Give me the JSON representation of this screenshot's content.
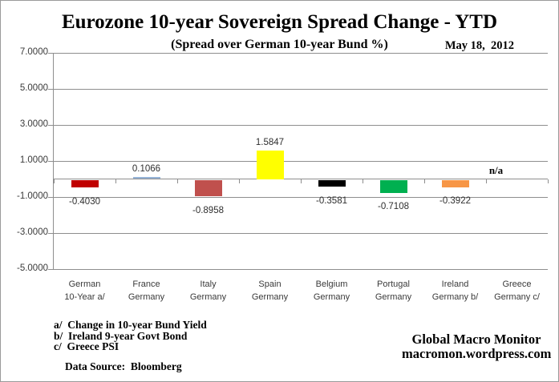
{
  "header": {
    "title": "Eurozone 10-year Sovereign Spread Change - YTD",
    "subtitle": "(Spread over German 10-year Bund %)",
    "date": "May 18,  2012"
  },
  "chart_data": {
    "type": "bar",
    "title": "Eurozone 10-year Sovereign Spread Change - YTD",
    "subtitle": "(Spread over German 10-year Bund %)",
    "categories": [
      {
        "line1": "German",
        "line2": "10-Year a/"
      },
      {
        "line1": "France",
        "line2": "Germany"
      },
      {
        "line1": "Italy",
        "line2": "Germany"
      },
      {
        "line1": "Spain",
        "line2": "Germany"
      },
      {
        "line1": "Belgium",
        "line2": "Germany"
      },
      {
        "line1": "Portugal",
        "line2": "Germany"
      },
      {
        "line1": "Ireland",
        "line2": "Germany b/"
      },
      {
        "line1": "Greece",
        "line2": "Germany c/"
      }
    ],
    "values": [
      -0.403,
      0.1066,
      -0.8958,
      1.5847,
      -0.3581,
      -0.7108,
      -0.3922,
      null
    ],
    "value_labels": [
      "-0.4030",
      "0.1066",
      "-0.8958",
      "1.5847",
      "-0.3581",
      "-0.7108",
      "-0.3922",
      "n/a"
    ],
    "bar_colors": [
      "#C00000",
      "#95B3D7",
      "#C0504D",
      "#FFFF00",
      "#000000",
      "#00B050",
      "#F79646",
      null
    ],
    "y_ticks": [
      "7.0000",
      "5.0000",
      "3.0000",
      "1.0000",
      "-1.0000",
      "-3.0000",
      "-5.0000"
    ],
    "y_tick_values": [
      7,
      5,
      3,
      1,
      -1,
      -3,
      -5
    ],
    "ylim": [
      -5,
      7
    ],
    "xlabel": "",
    "ylabel": "",
    "grid": true,
    "legend": false
  },
  "footnotes": [
    "a/  Change in 10-year Bund Yield",
    "b/  Ireland 9-year Govt Bond",
    "c/  Greece PSI"
  ],
  "data_source": "Data Source:  Bloomberg",
  "credit": {
    "line1": "Global Macro Monitor",
    "line2": "macromon.wordpress.com"
  }
}
